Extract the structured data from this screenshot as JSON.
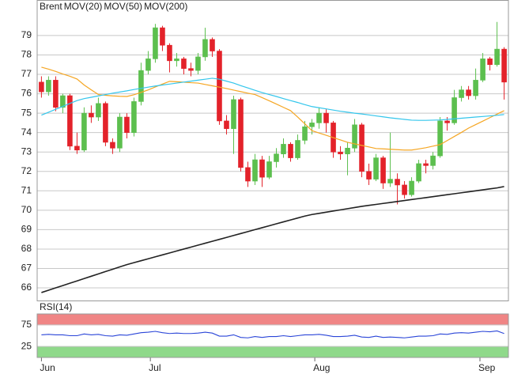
{
  "chart_data": [
    {
      "type": "candlestick",
      "x": [
        0,
        1,
        2,
        3,
        4,
        5,
        6,
        7,
        8,
        9,
        10,
        11,
        12,
        13,
        14,
        15,
        16,
        17,
        18,
        19,
        20,
        21,
        22,
        23,
        24,
        25,
        26,
        27,
        28,
        29,
        30,
        31,
        32,
        33,
        34,
        35,
        36,
        37,
        38,
        39,
        40,
        41,
        42,
        43,
        44,
        45,
        46,
        47,
        48,
        49,
        50,
        51,
        52,
        53,
        54,
        55,
        56,
        57,
        58,
        59,
        60,
        61,
        62,
        63,
        64,
        65
      ],
      "xlim": [
        -0.6,
        65.6
      ],
      "ylim": [
        65.35,
        80.83
      ],
      "yticks": [
        66,
        67,
        68,
        69,
        70,
        71,
        72,
        73,
        74,
        75,
        76,
        77,
        78,
        79
      ],
      "grid": true,
      "candles": {
        "name": "Brent",
        "color": "#e8413a",
        "up_color": "#5cbf4e",
        "down_color": "#e3222a",
        "open": [
          76.6,
          76.1,
          76.7,
          75.3,
          75.9,
          73.3,
          73.1,
          75.0,
          74.8,
          75.5,
          73.5,
          73.2,
          74.8,
          74.0,
          75.6,
          77.2,
          77.8,
          79.4,
          78.5,
          77.7,
          77.8,
          77.3,
          77.2,
          77.9,
          78.8,
          78.2,
          74.6,
          74.2,
          75.7,
          72.2,
          71.5,
          72.6,
          71.7,
          72.5,
          72.9,
          73.4,
          72.7,
          73.6,
          74.3,
          74.5,
          75.0,
          74.5,
          73.0,
          72.9,
          73.2,
          74.4,
          72.0,
          71.6,
          72.7,
          71.4,
          71.6,
          71.3,
          70.8,
          71.5,
          72.4,
          72.3,
          72.8,
          74.6,
          74.5,
          75.8,
          76.2,
          75.9,
          76.7,
          77.8,
          77.5,
          78.3
        ],
        "high": [
          76.9,
          76.9,
          76.9,
          76.0,
          76.0,
          74.0,
          75.3,
          75.4,
          75.8,
          75.6,
          73.7,
          75.0,
          75.0,
          75.8,
          77.6,
          78.2,
          79.6,
          79.5,
          78.6,
          78.1,
          77.9,
          77.6,
          78.1,
          79.4,
          78.9,
          78.3,
          74.9,
          75.9,
          75.8,
          72.5,
          72.9,
          72.8,
          72.8,
          73.2,
          73.7,
          73.5,
          73.9,
          74.6,
          74.7,
          75.3,
          75.2,
          74.6,
          73.3,
          73.5,
          74.7,
          74.5,
          72.4,
          72.9,
          72.8,
          74.0,
          71.9,
          71.5,
          71.7,
          72.6,
          72.6,
          73.0,
          74.8,
          74.8,
          76.2,
          76.4,
          76.4,
          77.3,
          78.1,
          77.9,
          79.7,
          78.4
        ],
        "low": [
          75.8,
          75.9,
          75.1,
          75.0,
          73.1,
          72.9,
          73.0,
          74.5,
          74.6,
          73.3,
          72.9,
          73.0,
          73.7,
          73.8,
          75.4,
          77.0,
          77.6,
          78.2,
          77.1,
          77.4,
          77.0,
          76.9,
          77.0,
          77.7,
          77.9,
          74.4,
          73.9,
          72.9,
          72.0,
          71.2,
          71.3,
          71.2,
          71.6,
          72.2,
          72.7,
          72.5,
          72.6,
          73.4,
          73.9,
          74.2,
          74.0,
          72.7,
          72.6,
          71.8,
          73.0,
          71.7,
          71.3,
          71.5,
          71.1,
          71.2,
          70.3,
          70.6,
          70.7,
          71.4,
          71.9,
          72.1,
          72.7,
          74.1,
          74.4,
          75.6,
          75.7,
          75.7,
          76.6,
          77.2,
          77.4,
          75.7
        ],
        "close": [
          76.1,
          76.7,
          75.3,
          75.9,
          73.3,
          73.1,
          75.0,
          74.8,
          75.5,
          73.5,
          73.2,
          74.8,
          74.0,
          75.6,
          77.2,
          77.8,
          79.4,
          78.5,
          77.7,
          77.8,
          77.3,
          77.2,
          77.9,
          78.8,
          78.2,
          74.6,
          74.2,
          75.7,
          72.2,
          71.5,
          72.6,
          71.7,
          72.5,
          72.9,
          73.4,
          72.7,
          73.6,
          74.3,
          74.5,
          75.0,
          74.5,
          73.0,
          72.9,
          73.2,
          74.4,
          72.0,
          71.6,
          72.7,
          71.4,
          71.6,
          71.3,
          70.8,
          71.5,
          72.4,
          72.3,
          72.8,
          74.6,
          74.5,
          75.8,
          76.2,
          75.9,
          76.7,
          77.8,
          77.5,
          78.3,
          76.6
        ]
      },
      "series": [
        {
          "name": "MOV(20)",
          "color": "#f5a623",
          "values": [
            77.37,
            77.27,
            77.15,
            77.02,
            76.9,
            76.76,
            76.45,
            76.2,
            75.96,
            75.92,
            75.89,
            75.87,
            75.86,
            75.95,
            76.07,
            76.2,
            76.35,
            76.5,
            76.64,
            76.62,
            76.6,
            76.57,
            76.55,
            76.48,
            76.41,
            76.34,
            76.27,
            76.19,
            76.11,
            76.03,
            75.96,
            75.8,
            75.64,
            75.47,
            75.3,
            75.13,
            74.8,
            74.45,
            74.1,
            73.98,
            73.86,
            73.74,
            73.62,
            73.5,
            73.42,
            73.34,
            73.26,
            73.18,
            73.16,
            73.14,
            73.12,
            73.1,
            73.1,
            73.16,
            73.22,
            73.3,
            73.38,
            73.59,
            73.8,
            74.01,
            74.23,
            74.41,
            74.59,
            74.77,
            74.95,
            75.13
          ]
        },
        {
          "name": "MOV(50)",
          "color": "#33c6ec",
          "values": [
            74.9,
            75.05,
            75.2,
            75.35,
            75.5,
            75.65,
            75.75,
            75.82,
            75.89,
            75.96,
            76.03,
            76.09,
            76.15,
            76.22,
            76.28,
            76.34,
            76.4,
            76.45,
            76.5,
            76.55,
            76.6,
            76.65,
            76.7,
            76.75,
            76.8,
            76.75,
            76.65,
            76.55,
            76.42,
            76.3,
            76.18,
            76.06,
            75.96,
            75.86,
            75.75,
            75.65,
            75.55,
            75.44,
            75.34,
            75.28,
            75.22,
            75.16,
            75.1,
            75.05,
            75.0,
            74.96,
            74.91,
            74.86,
            74.81,
            74.76,
            74.72,
            74.68,
            74.64,
            74.63,
            74.63,
            74.64,
            74.65,
            74.68,
            74.71,
            74.74,
            74.77,
            74.8,
            74.83,
            74.86,
            74.89,
            74.93
          ]
        },
        {
          "name": "MOV(200)",
          "color": "#222222",
          "values": [
            65.76,
            65.88,
            66.0,
            66.12,
            66.24,
            66.36,
            66.48,
            66.6,
            66.72,
            66.84,
            66.96,
            67.08,
            67.2,
            67.3,
            67.4,
            67.5,
            67.6,
            67.7,
            67.8,
            67.9,
            68.0,
            68.1,
            68.2,
            68.3,
            68.4,
            68.5,
            68.6,
            68.7,
            68.8,
            68.9,
            69.0,
            69.1,
            69.2,
            69.3,
            69.4,
            69.5,
            69.6,
            69.7,
            69.78,
            69.84,
            69.9,
            69.96,
            70.02,
            70.08,
            70.14,
            70.2,
            70.25,
            70.3,
            70.35,
            70.4,
            70.45,
            70.5,
            70.55,
            70.6,
            70.65,
            70.7,
            70.75,
            70.8,
            70.85,
            70.9,
            70.95,
            71.0,
            71.05,
            71.1,
            71.15,
            71.22
          ]
        }
      ]
    },
    {
      "type": "line",
      "xlim": [
        -0.6,
        65.6
      ],
      "xticks": [
        {
          "value": 0,
          "label": "Jun"
        },
        {
          "value": 15.3,
          "label": "Jul"
        },
        {
          "value": 38.4,
          "label": "Aug"
        },
        {
          "value": 61.6,
          "label": "Sep"
        }
      ],
      "ylim": [
        0,
        100
      ],
      "yticks": [
        25,
        75
      ],
      "band_colors": [
        "#8fd98a",
        "#f08585"
      ],
      "series": [
        {
          "name": "RSI(14)",
          "color": "#2a45d8",
          "values": [
            52,
            53,
            52,
            52,
            50,
            50,
            54,
            52,
            53,
            50,
            49,
            52,
            51,
            54,
            57,
            58,
            60,
            57,
            55,
            56,
            55,
            55,
            56,
            58,
            56,
            49,
            49,
            52,
            46,
            45,
            48,
            46,
            48,
            48,
            50,
            48,
            50,
            52,
            52,
            53,
            51,
            48,
            48,
            49,
            51,
            47,
            46,
            49,
            46,
            47,
            46,
            45,
            47,
            49,
            49,
            50,
            54,
            53,
            56,
            57,
            56,
            58,
            60,
            59,
            61,
            55
          ]
        }
      ]
    }
  ]
}
